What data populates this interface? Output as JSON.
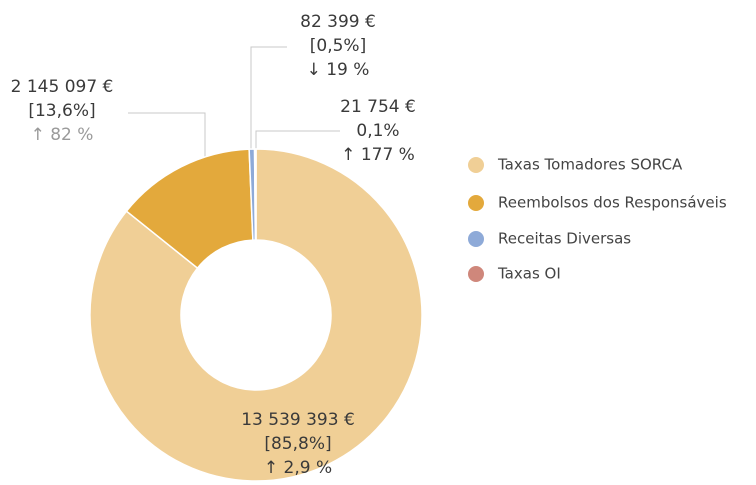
{
  "chart_data": {
    "type": "donut",
    "categories": [
      "Taxas Tomadores SORCA",
      "Reembolsos dos Responsáveis",
      "Receitas Diversas",
      "Taxas OI"
    ],
    "values": [
      13539393,
      2145097,
      82399,
      21754
    ],
    "value_labels": [
      "13 539 393 €",
      "2 145 097 €",
      "82 399 €",
      "21 754 €"
    ],
    "share_labels": [
      "[85,8%]",
      "[13,6%]",
      "[0,5%]",
      "0,1%"
    ],
    "change_labels": [
      "↑ 2,9 %",
      "↑ 82 %",
      "↓ 19 %",
      "↑ 177 %"
    ],
    "colors": [
      "#f0cf96",
      "#e3a93c",
      "#8eaad8",
      "#cf877b"
    ],
    "legend": "right"
  }
}
